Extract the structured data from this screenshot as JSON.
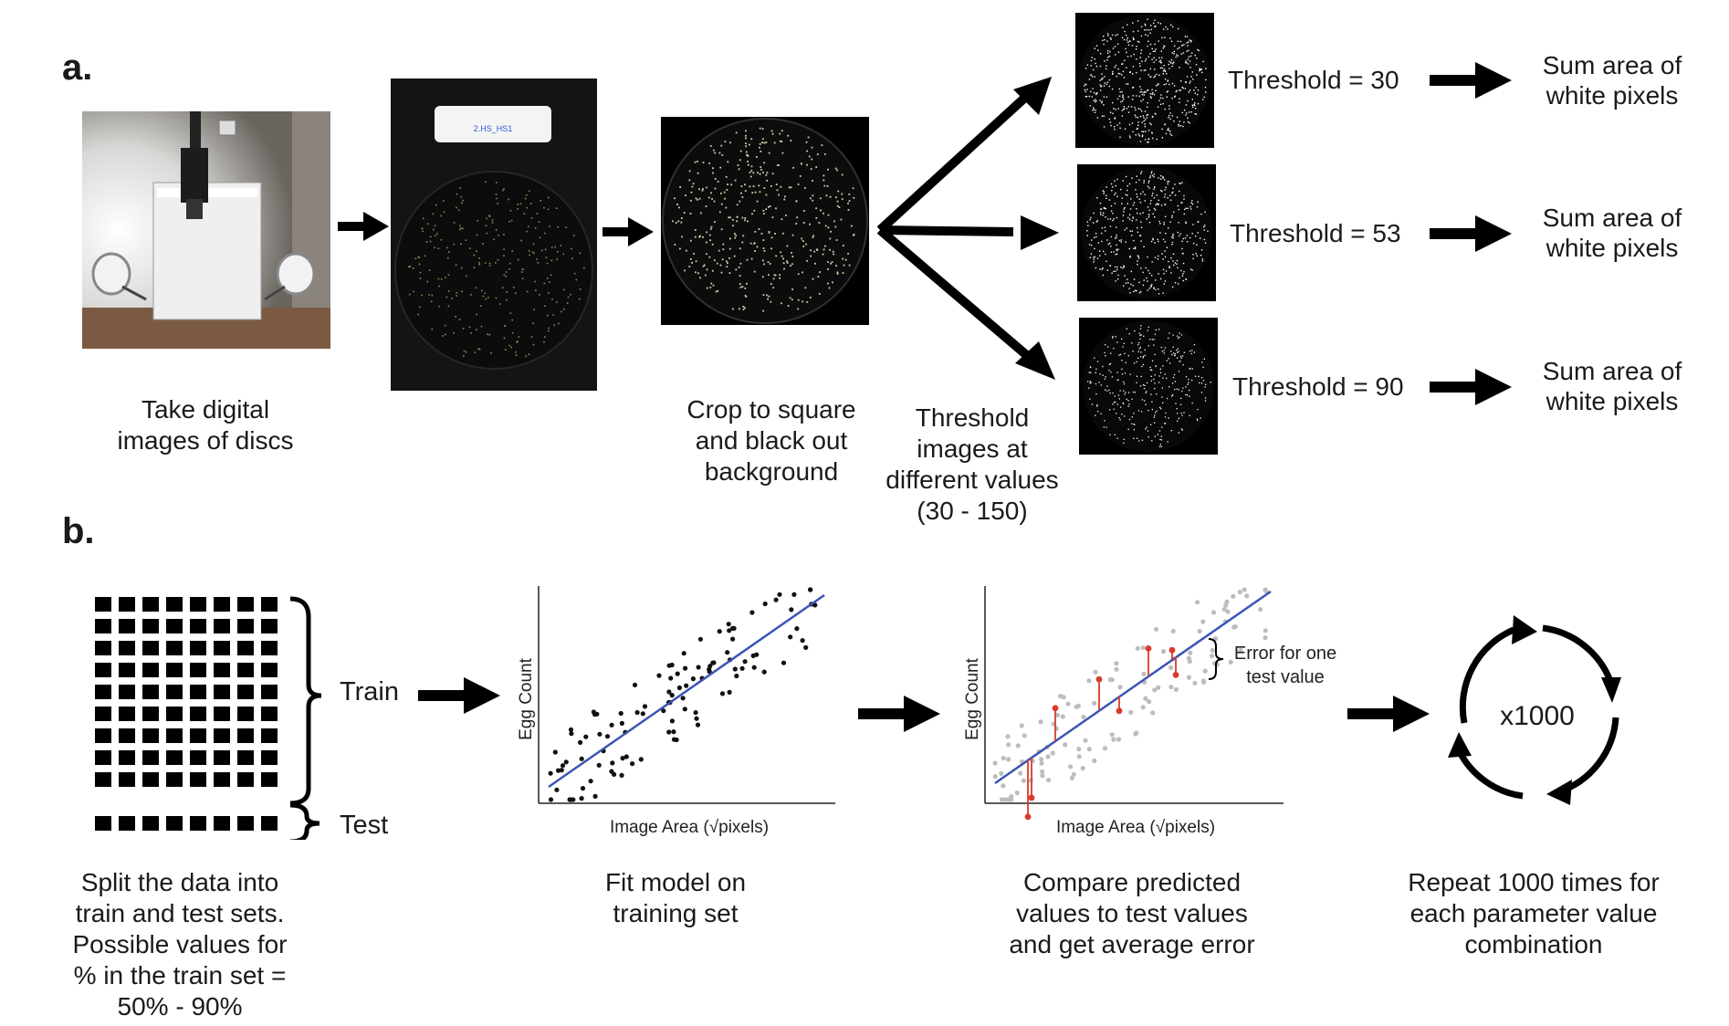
{
  "panel_a": {
    "label": "a.",
    "steps": [
      {
        "caption": "Take digital\nimages of discs"
      },
      {
        "sample_tag": "2.HS_HS1"
      },
      {
        "caption": "Crop to square\nand black out\nbackground"
      },
      {
        "caption": "Threshold\nimages at\ndifferent values\n(30 - 150)"
      }
    ],
    "thresholds": [
      {
        "label": "Threshold = 30",
        "result": "Sum area of\nwhite pixels"
      },
      {
        "label": "Threshold = 53",
        "result": "Sum area of\nwhite pixels"
      },
      {
        "label": "Threshold = 90",
        "result": "Sum area of\nwhite pixels"
      }
    ]
  },
  "panel_b": {
    "label": "b.",
    "split": {
      "train_label": "Train",
      "test_label": "Test",
      "caption": "Split the data into\ntrain and test sets.\nPossible values for\n% in the train set =\n50% - 90%"
    },
    "fit": {
      "ylabel": "Egg Count",
      "xlabel": "Image Area (√pixels)",
      "caption": "Fit model on\ntraining set"
    },
    "compare": {
      "ylabel": "Egg Count",
      "xlabel": "Image Area (√pixels)",
      "annotation": "Error for one\ntest value",
      "caption": "Compare predicted\nvalues to test values\nand get average error"
    },
    "repeat": {
      "cycle_label": "x1000",
      "caption": "Repeat 1000 times for\neach parameter value\ncombination"
    }
  },
  "colors": {
    "fit_line": "#3a55b4",
    "test_point": "#d93a2b",
    "train_point_faded": "#bdbdbd"
  }
}
